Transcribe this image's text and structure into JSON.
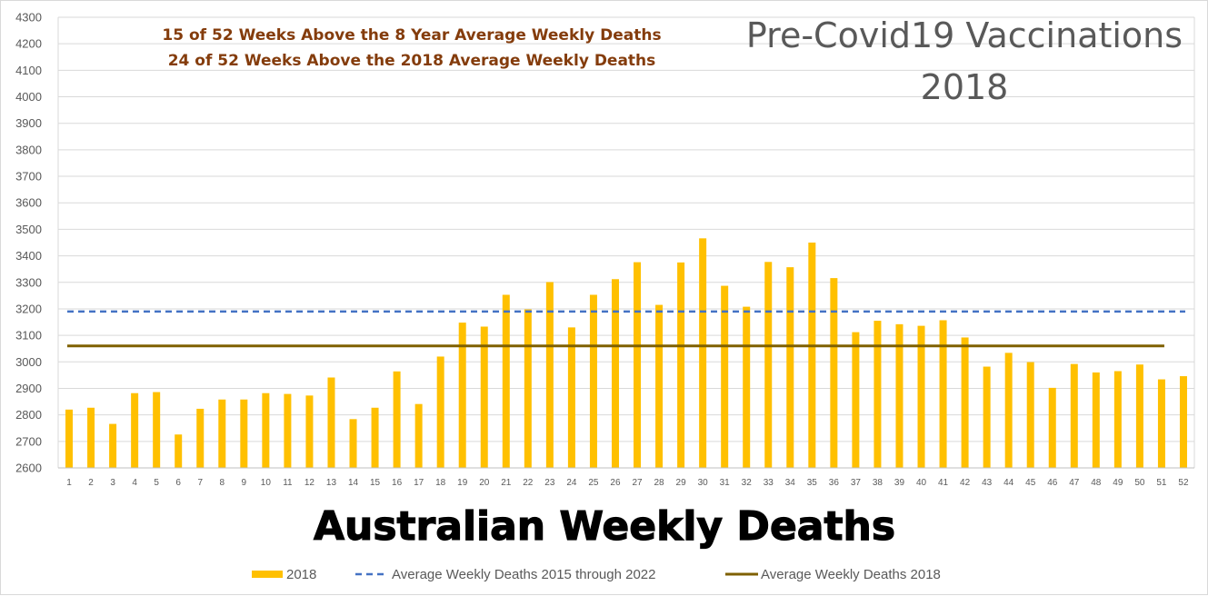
{
  "chart_data": {
    "type": "bar",
    "title_lines": [
      "Pre-Covid19 Vaccinations",
      "2018"
    ],
    "notes": [
      "15 of 52 Weeks Above the 8 Year Average Weekly Deaths",
      "24 of 52 Weeks Above the 2018 Average Weekly Deaths"
    ],
    "xlabel": "Australian Weekly Deaths",
    "ylabel": "",
    "ylim": [
      2600,
      4300
    ],
    "ytick_step": 100,
    "grid": true,
    "legend_position": "bottom",
    "categories": [
      "1",
      "2",
      "3",
      "4",
      "5",
      "6",
      "7",
      "8",
      "9",
      "10",
      "11",
      "12",
      "13",
      "14",
      "15",
      "16",
      "17",
      "18",
      "19",
      "20",
      "21",
      "22",
      "23",
      "24",
      "25",
      "26",
      "27",
      "28",
      "29",
      "30",
      "31",
      "32",
      "33",
      "34",
      "35",
      "36",
      "37",
      "38",
      "39",
      "40",
      "41",
      "42",
      "43",
      "44",
      "45",
      "46",
      "47",
      "48",
      "49",
      "50",
      "51",
      "52"
    ],
    "series": [
      {
        "name": "2018",
        "type": "bar",
        "color": "#ffc000",
        "values": [
          2820,
          2827,
          2766,
          2882,
          2886,
          2726,
          2823,
          2858,
          2858,
          2882,
          2879,
          2873,
          2941,
          2784,
          2827,
          2964,
          2841,
          3020,
          3148,
          3133,
          3253,
          3198,
          3301,
          3130,
          3253,
          3312,
          3376,
          3215,
          3375,
          3466,
          3287,
          3208,
          3377,
          3357,
          3450,
          3316,
          3112,
          3155,
          3142,
          3136,
          3157,
          3092,
          2982,
          3034,
          2999,
          2902,
          2992,
          2960,
          2965,
          2990,
          2934,
          2946
        ]
      },
      {
        "name": "Average Weekly Deaths 2015 through 2022",
        "type": "hline",
        "style": "dashed",
        "color": "#4472c4",
        "value": 3190
      },
      {
        "name": "Average Weekly Deaths 2018",
        "type": "hline",
        "style": "solid",
        "color": "#7f6000",
        "value": 3060
      }
    ]
  }
}
